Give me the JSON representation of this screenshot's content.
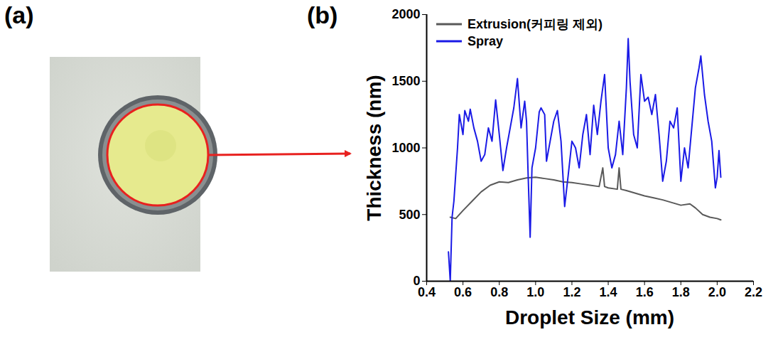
{
  "panel_labels": [
    "(a)",
    "(b)"
  ],
  "chart_data": {
    "type": "line",
    "x_label": "Droplet Size (mm)",
    "y_label": "Thickness (nm)",
    "xlim": [
      0.4,
      2.2
    ],
    "xticks": [
      0.4,
      0.6,
      0.8,
      {
        "value": 1,
        "label": "1.0"
      },
      1.2,
      1.4,
      1.6,
      1.8,
      {
        "value": 2,
        "label": "2.0"
      },
      2.2
    ],
    "ylim": [
      0,
      2000
    ],
    "yticks": [
      0,
      500,
      1000,
      1500,
      2000
    ],
    "grid": false,
    "legend": "top-left",
    "series": [
      {
        "name": "Extrusion(커피링 제외)",
        "color": "#595959",
        "x": [
          0.53,
          0.56,
          0.6,
          0.65,
          0.7,
          0.75,
          0.8,
          0.85,
          0.9,
          0.95,
          1.0,
          1.05,
          1.1,
          1.15,
          1.2,
          1.25,
          1.3,
          1.35,
          1.37,
          1.38,
          1.4,
          1.45,
          1.46,
          1.47,
          1.5,
          1.55,
          1.6,
          1.65,
          1.7,
          1.75,
          1.8,
          1.85,
          1.88,
          1.92,
          1.96,
          2.0,
          2.02
        ],
        "values": [
          480,
          470,
          530,
          600,
          670,
          720,
          745,
          740,
          760,
          775,
          780,
          770,
          760,
          745,
          740,
          730,
          720,
          710,
          850,
          710,
          700,
          690,
          850,
          690,
          680,
          660,
          640,
          625,
          610,
          590,
          570,
          580,
          550,
          500,
          480,
          470,
          460
        ]
      },
      {
        "name": "Spray",
        "color": "#1a1ae6",
        "x": [
          0.52,
          0.53,
          0.54,
          0.55,
          0.57,
          0.58,
          0.6,
          0.61,
          0.63,
          0.64,
          0.66,
          0.68,
          0.7,
          0.72,
          0.74,
          0.76,
          0.78,
          0.8,
          0.82,
          0.84,
          0.86,
          0.88,
          0.9,
          0.92,
          0.94,
          0.95,
          0.96,
          0.97,
          0.98,
          1.0,
          1.02,
          1.03,
          1.05,
          1.06,
          1.08,
          1.1,
          1.12,
          1.14,
          1.16,
          1.18,
          1.2,
          1.22,
          1.24,
          1.26,
          1.28,
          1.3,
          1.32,
          1.34,
          1.36,
          1.38,
          1.4,
          1.42,
          1.44,
          1.46,
          1.48,
          1.5,
          1.51,
          1.52,
          1.54,
          1.56,
          1.58,
          1.6,
          1.62,
          1.64,
          1.66,
          1.68,
          1.7,
          1.72,
          1.74,
          1.76,
          1.78,
          1.8,
          1.82,
          1.84,
          1.86,
          1.88,
          1.9,
          1.91,
          1.93,
          1.95,
          1.97,
          1.99,
          2.0,
          2.01,
          2.02
        ],
        "values": [
          220,
          0,
          480,
          600,
          1000,
          1250,
          1100,
          1280,
          1200,
          1290,
          1150,
          1050,
          900,
          950,
          1150,
          1050,
          1360,
          1100,
          830,
          1000,
          1150,
          1300,
          1520,
          1150,
          1350,
          1200,
          750,
          330,
          850,
          1000,
          1270,
          1300,
          1250,
          900,
          1050,
          1200,
          1280,
          1050,
          560,
          800,
          1050,
          1000,
          850,
          1100,
          1250,
          950,
          1320,
          1100,
          1350,
          1550,
          1000,
          850,
          950,
          1200,
          950,
          1450,
          1820,
          1500,
          1100,
          1000,
          1550,
          1350,
          1380,
          1250,
          1400,
          1100,
          750,
          900,
          1200,
          1150,
          1300,
          750,
          1000,
          850,
          1150,
          1450,
          1600,
          1690,
          1400,
          1200,
          1050,
          700,
          780,
          980,
          780
        ]
      }
    ]
  }
}
